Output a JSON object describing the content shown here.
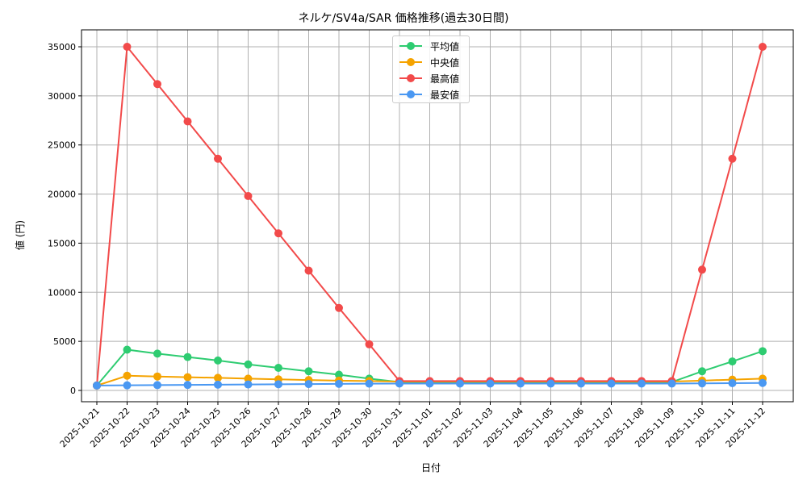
{
  "chart_data": {
    "type": "line",
    "title": "ネルケ/SV4a/SAR 価格推移(過去30日間)",
    "xlabel": "日付",
    "ylabel": "値 (円)",
    "ylim": [
      -1000,
      36700
    ],
    "yticks": [
      0,
      5000,
      10000,
      15000,
      20000,
      25000,
      30000,
      35000
    ],
    "grid": true,
    "legend_position": "upper center",
    "categories": [
      "2025-10-21",
      "2025-10-22",
      "2025-10-23",
      "2025-10-24",
      "2025-10-25",
      "2025-10-26",
      "2025-10-27",
      "2025-10-28",
      "2025-10-29",
      "2025-10-30",
      "2025-10-31",
      "2025-11-01",
      "2025-11-02",
      "2025-11-03",
      "2025-11-04",
      "2025-11-05",
      "2025-11-06",
      "2025-11-07",
      "2025-11-08",
      "2025-11-09",
      "2025-11-10",
      "2025-11-11",
      "2025-11-12"
    ],
    "series": [
      {
        "name": "平均値",
        "color": "#2ecc71",
        "values": [
          500,
          4150,
          3750,
          3400,
          3050,
          2650,
          2300,
          1950,
          1600,
          1200,
          850,
          850,
          850,
          850,
          850,
          850,
          850,
          850,
          850,
          850,
          1950,
          2950,
          4000
        ]
      },
      {
        "name": "中央値",
        "color": "#f5a300",
        "values": [
          500,
          1500,
          1420,
          1350,
          1280,
          1200,
          1130,
          1060,
          1000,
          950,
          900,
          900,
          900,
          900,
          900,
          900,
          900,
          900,
          900,
          900,
          1000,
          1100,
          1200
        ]
      },
      {
        "name": "最高値",
        "color": "#f24a4a",
        "values": [
          500,
          35000,
          31200,
          27400,
          23600,
          19800,
          16000,
          12200,
          8400,
          4700,
          950,
          950,
          950,
          950,
          950,
          950,
          950,
          950,
          950,
          950,
          12300,
          23600,
          35000
        ]
      },
      {
        "name": "最安値",
        "color": "#4a98f2",
        "values": [
          500,
          520,
          540,
          560,
          590,
          610,
          630,
          650,
          670,
          690,
          700,
          700,
          700,
          700,
          700,
          700,
          700,
          700,
          700,
          700,
          720,
          740,
          760
        ]
      }
    ]
  }
}
